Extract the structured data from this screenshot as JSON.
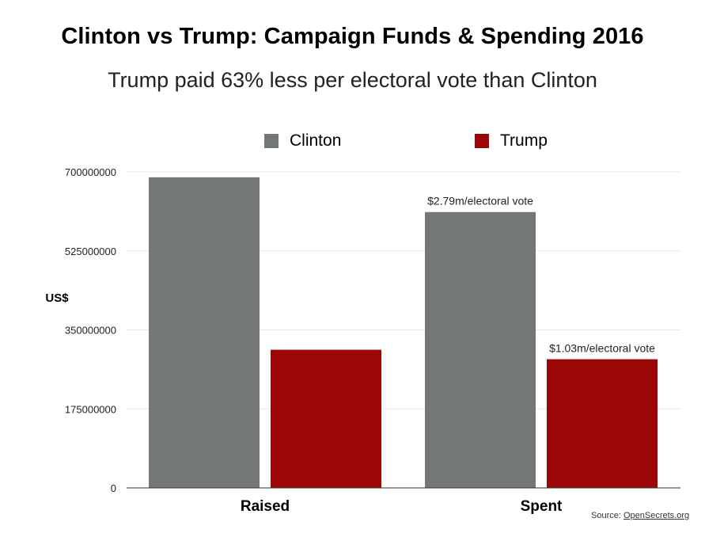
{
  "header": {
    "title": "Clinton vs Trump: Campaign Funds & Spending 2016",
    "subtitle": "Trump paid 63% less per electoral vote than Clinton"
  },
  "legend": {
    "items": [
      {
        "label": "Clinton",
        "color": "#737775"
      },
      {
        "label": "Trump",
        "color": "#9b0707"
      }
    ]
  },
  "source": {
    "prefix": "Source: ",
    "link_text": "OpenSecrets.org"
  },
  "chart_data": {
    "type": "bar",
    "categories": [
      "Raised",
      "Spent"
    ],
    "series": [
      {
        "name": "Clinton",
        "color": "#737775",
        "values": [
          688000000,
          611000000
        ]
      },
      {
        "name": "Trump",
        "color": "#9b0707",
        "values": [
          306000000,
          285000000
        ]
      }
    ],
    "ylabel": "US$",
    "ylim": [
      0,
      700000000
    ],
    "yticks": [
      "0",
      "175000000",
      "350000000",
      "525000000",
      "700000000"
    ],
    "annotations": [
      {
        "category": "Spent",
        "series": "Clinton",
        "text": "$2.79m/electoral vote"
      },
      {
        "category": "Spent",
        "series": "Trump",
        "text": "$1.03m/electoral vote"
      }
    ],
    "grid": true,
    "legend_position": "top-center"
  }
}
